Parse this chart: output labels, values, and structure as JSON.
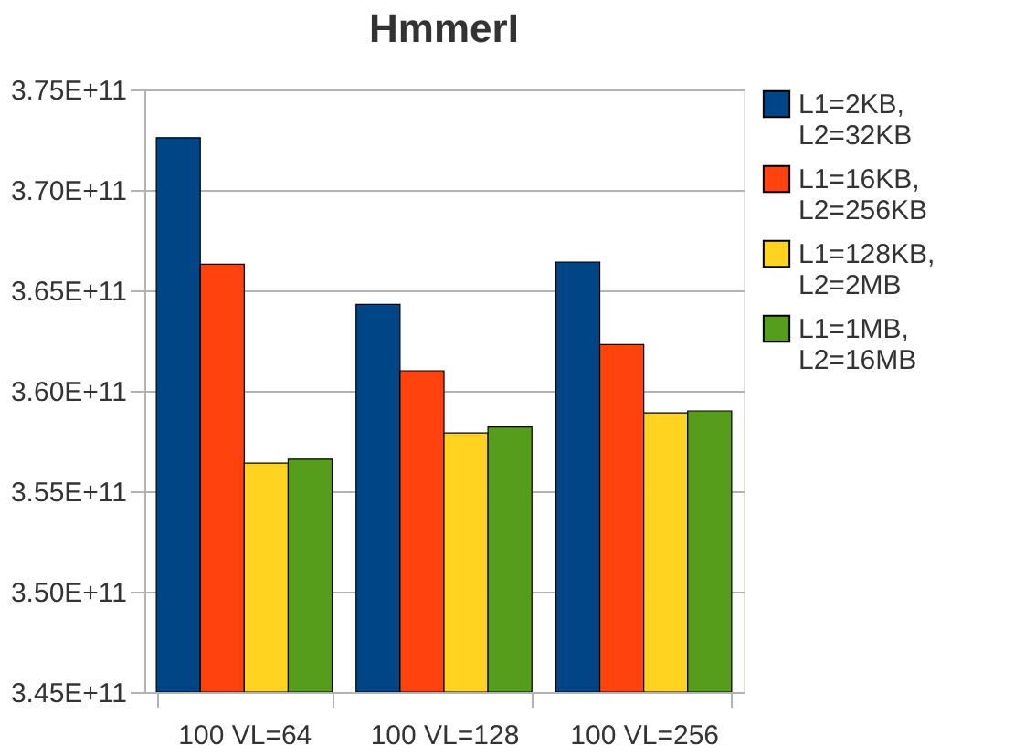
{
  "chart_data": {
    "type": "bar",
    "title": "HmmerI",
    "categories": [
      "100 VL=64",
      "100 VL=128",
      "100 VL=256"
    ],
    "series": [
      {
        "name": "L1=2KB, L2=32KB",
        "color": "#004586",
        "values": [
          372600000000.0,
          364300000000.0,
          366400000000.0
        ]
      },
      {
        "name": "L1=16KB, L2=256KB",
        "color": "#ff420e",
        "values": [
          366300000000.0,
          361000000000.0,
          362300000000.0
        ]
      },
      {
        "name": "L1=128KB, L2=2MB",
        "color": "#ffd320",
        "values": [
          356400000000.0,
          357900000000.0,
          358900000000.0
        ]
      },
      {
        "name": "L1=1MB, L2=16MB",
        "color": "#579d1c",
        "values": [
          356600000000.0,
          358200000000.0,
          359000000000.0
        ]
      }
    ],
    "ylim": [
      345000000000.0,
      375000000000.0
    ],
    "yticks": [
      {
        "value": 345000000000.0,
        "label": "3.45E+11"
      },
      {
        "value": 350000000000.0,
        "label": "3.50E+11"
      },
      {
        "value": 355000000000.0,
        "label": "3.55E+11"
      },
      {
        "value": 360000000000.0,
        "label": "3.60E+11"
      },
      {
        "value": 365000000000.0,
        "label": "3.65E+11"
      },
      {
        "value": 370000000000.0,
        "label": "3.70E+11"
      },
      {
        "value": 375000000000.0,
        "label": "3.75E+11"
      }
    ],
    "grid": "y",
    "legend": "right"
  }
}
